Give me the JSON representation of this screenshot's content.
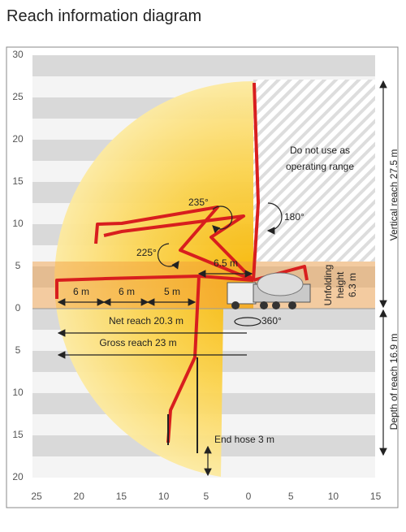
{
  "header": {
    "title": "Reach information diagram"
  },
  "axes": {
    "y_labels": [
      "30",
      "25",
      "20",
      "15",
      "10",
      "5",
      "0",
      "5",
      "10",
      "15",
      "20"
    ],
    "x_labels": [
      "25",
      "20",
      "15",
      "10",
      "5",
      "0",
      "5",
      "10",
      "15"
    ]
  },
  "annotations": {
    "no_use": [
      "Do not use as",
      "operating range"
    ],
    "angle_180": "180°",
    "angle_235": "235°",
    "angle_225": "225°",
    "angle_360": "360°",
    "segment_65": "6.5 m",
    "segments": [
      "6 m",
      "6 m",
      "5 m"
    ],
    "unfolding": [
      "Unfolding",
      "height",
      "6.3 m"
    ],
    "vertical_reach": "Vertical reach 27.5 m",
    "depth_reach": "Depth of reach 16.9 m",
    "net_reach": "Net reach 20.3 m",
    "gross_reach": "Gross reach 23 m",
    "end_hose": "End hose 3 m"
  }
}
